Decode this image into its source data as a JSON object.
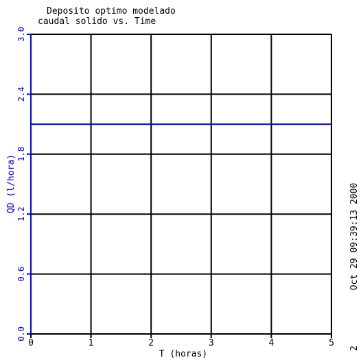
{
  "chart_data": {
    "type": "line",
    "title_line1": "Deposito optimo modelado",
    "title_line2": "caudal solido vs. Time",
    "xlabel": "T (horas)",
    "ylabel": "QD (l/hora)",
    "xlim": [
      0,
      5
    ],
    "ylim": [
      0.0,
      3.0
    ],
    "x_ticks": [
      0,
      1,
      2,
      3,
      4,
      5
    ],
    "y_ticks": [
      "0.0",
      "0.6",
      "1.2",
      "1.8",
      "2.4",
      "3.0"
    ],
    "grid": true,
    "series": [
      {
        "x": [
          0,
          5
        ],
        "values": [
          2.1,
          2.1
        ],
        "color": "#0000ff"
      }
    ],
    "axis_color": "#0000ff",
    "side_text": "Oct 29 09:39:13 2000",
    "side_number": "2"
  }
}
